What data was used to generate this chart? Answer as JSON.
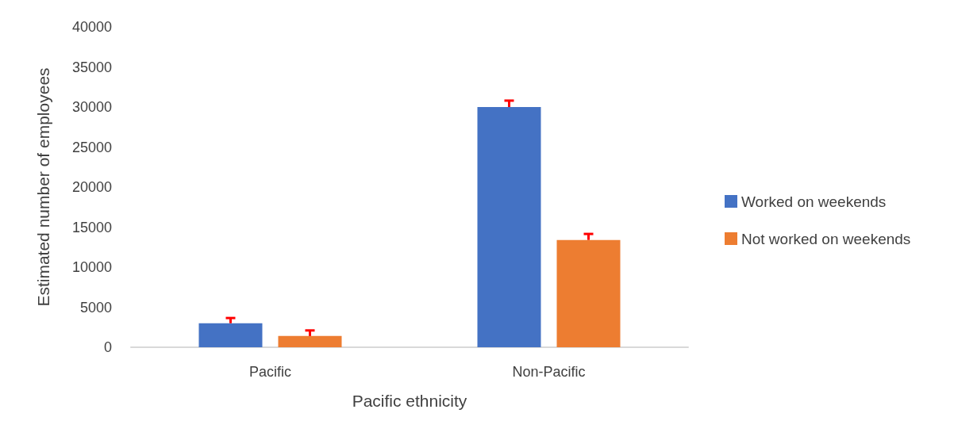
{
  "chart_data": {
    "type": "bar",
    "xlabel": "Pacific ethnicity",
    "ylabel": "Estimated number of employees",
    "categories": [
      "Pacific",
      "Non-Pacific"
    ],
    "series": [
      {
        "name": "Worked on weekends",
        "color": "#4472c4",
        "values": [
          3000,
          30000
        ],
        "errors": [
          [
            3000,
            3650
          ],
          [
            30000,
            30800
          ]
        ]
      },
      {
        "name": "Not worked on weekends",
        "color": "#ed7d31",
        "values": [
          1400,
          13400
        ],
        "errors": [
          [
            1400,
            2100
          ],
          [
            13400,
            14150
          ]
        ]
      }
    ],
    "ylim": [
      0,
      40000
    ],
    "yticks": [
      0,
      5000,
      10000,
      15000,
      20000,
      25000,
      30000,
      35000,
      40000
    ],
    "grid": false,
    "legend": "right"
  }
}
